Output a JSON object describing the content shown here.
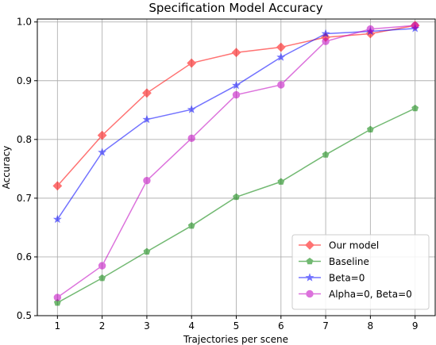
{
  "chart_data": {
    "type": "line",
    "title": "Specification Model Accuracy",
    "xlabel": "Trajectories per scene",
    "ylabel": "Accuracy",
    "x": [
      1,
      2,
      3,
      4,
      5,
      6,
      7,
      8,
      9
    ],
    "xlim": [
      0.55,
      9.45
    ],
    "ylim": [
      0.5,
      1.005
    ],
    "yticks": [
      0.5,
      0.6,
      0.7,
      0.8,
      0.9,
      1.0
    ],
    "ytick_labels": [
      "0.5",
      "0.6",
      "0.7",
      "0.8",
      "0.9",
      "1.0"
    ],
    "xticks": [
      1,
      2,
      3,
      4,
      5,
      6,
      7,
      8,
      9
    ],
    "xtick_labels": [
      "1",
      "2",
      "3",
      "4",
      "5",
      "6",
      "7",
      "8",
      "9"
    ],
    "grid": true,
    "legend_position": "bottom-right",
    "series": [
      {
        "name": "Our model",
        "color": "#ff0000",
        "marker": "diamond",
        "values": [
          0.721,
          0.807,
          0.879,
          0.93,
          0.948,
          0.957,
          0.974,
          0.98,
          0.994
        ]
      },
      {
        "name": "Baseline",
        "color": "#008000",
        "marker": "pentagon",
        "values": [
          0.522,
          0.564,
          0.609,
          0.653,
          0.702,
          0.728,
          0.774,
          0.817,
          0.853
        ]
      },
      {
        "name": "Beta=0",
        "color": "#0000ff",
        "marker": "star",
        "values": [
          0.664,
          0.778,
          0.834,
          0.851,
          0.892,
          0.94,
          0.98,
          0.984,
          0.989
        ]
      },
      {
        "name": "Alpha=0, Beta=0",
        "color": "#c000c0",
        "marker": "circle",
        "values": [
          0.531,
          0.585,
          0.73,
          0.802,
          0.876,
          0.893,
          0.967,
          0.988,
          0.994
        ]
      }
    ]
  }
}
